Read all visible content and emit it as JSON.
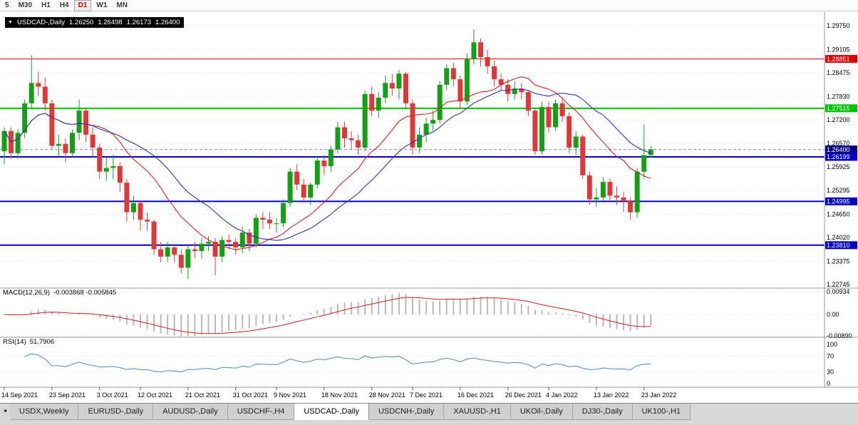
{
  "toolbar": {
    "timeframes": [
      {
        "label": "5",
        "active": false
      },
      {
        "label": "M30",
        "active": false
      },
      {
        "label": "H1",
        "active": false
      },
      {
        "label": "H4",
        "active": false
      },
      {
        "label": "D1",
        "active": true
      },
      {
        "label": "W1",
        "active": false
      },
      {
        "label": "MN",
        "active": false
      }
    ]
  },
  "chart_data": {
    "type": "candlestick",
    "title": {
      "icon_expand": "▼",
      "symbol": "USDCAD-,Daily",
      "open": "1.26250",
      "high": "1.26498",
      "low": "1.26173",
      "close": "1.26400"
    },
    "colors": {
      "bull": "#14a014",
      "bear": "#e03838",
      "grid": "#d9d9d9"
    },
    "price_axis": {
      "max": "1.29750",
      "min": "1.22745",
      "ticks": [
        "1.29750",
        "1.29105",
        "1.28475",
        "1.27830",
        "1.27200",
        "1.26570",
        "1.25925",
        "1.25295",
        "1.24650",
        "1.24020",
        "1.23375",
        "1.22745"
      ]
    },
    "levels": [
      {
        "price": "1.28851",
        "color": "#e00000",
        "line_width": 1
      },
      {
        "price": "1.27515",
        "color": "#00c400",
        "line_width": 2
      },
      {
        "price": "1.26199",
        "color": "#0000c8",
        "line_width": 2
      },
      {
        "price": "1.24995",
        "color": "#0000c8",
        "line_width": 2
      },
      {
        "price": "1.23810",
        "color": "#0000c8",
        "line_width": 2
      }
    ],
    "current_price": {
      "price": "1.26400",
      "tag_color": "#00008b",
      "line_color": "#8888c8"
    },
    "moving_averages": [
      {
        "type": "sma",
        "period": 13,
        "color": "#d42020"
      },
      {
        "type": "sma",
        "period": 21,
        "color": "#3333aa"
      }
    ],
    "x_labels": [
      {
        "t": "14 Sep 2021",
        "i": 0
      },
      {
        "t": "23 Sep 2021",
        "i": 7
      },
      {
        "t": "3 Oct 2021",
        "i": 14
      },
      {
        "t": "12 Oct 2021",
        "i": 20
      },
      {
        "t": "21 Oct 2021",
        "i": 27
      },
      {
        "t": "31 Oct 2021",
        "i": 34
      },
      {
        "t": "9 Nov 2021",
        "i": 40
      },
      {
        "t": "18 Nov 2021",
        "i": 47
      },
      {
        "t": "28 Nov 2021",
        "i": 54
      },
      {
        "t": "7 Dec 2021",
        "i": 60
      },
      {
        "t": "16 Dec 2021",
        "i": 67
      },
      {
        "t": "26 Dec 2021",
        "i": 74
      },
      {
        "t": "4 Jan 2022",
        "i": 80
      },
      {
        "t": "13 Jan 2022",
        "i": 87
      },
      {
        "t": "23 Jan 2022",
        "i": 94
      }
    ],
    "indicators": {
      "macd": {
        "name": "MACD(12,26,9)",
        "values_text": "-0.003868 -0.005845",
        "fast": 12,
        "slow": 26,
        "signal_period": 9,
        "scale_max": "0.00934",
        "scale_min": "-0.00890",
        "axis": [
          "0.00934",
          "0.00",
          "-0.00890"
        ],
        "bar_color": "#b8b8b8",
        "signal_color": "#cc2020"
      },
      "rsi": {
        "name": "RSI(14)",
        "value_text": "51.7906",
        "period": 14,
        "axis": [
          "100",
          "70",
          "30",
          "0"
        ],
        "line_color": "#4f86c8"
      }
    },
    "candles": [
      [
        1.2635,
        1.27,
        1.26,
        1.269
      ],
      [
        1.269,
        1.27,
        1.2615,
        1.263
      ],
      [
        1.263,
        1.2695,
        1.2615,
        1.2685
      ],
      [
        1.2685,
        1.2775,
        1.267,
        1.2765
      ],
      [
        1.2765,
        1.2895,
        1.275,
        1.282
      ],
      [
        1.282,
        1.285,
        1.2785,
        1.281
      ],
      [
        1.281,
        1.2835,
        1.2745,
        1.2765
      ],
      [
        1.2765,
        1.2775,
        1.264,
        1.265
      ],
      [
        1.265,
        1.268,
        1.262,
        1.2655
      ],
      [
        1.2655,
        1.267,
        1.2605,
        1.263
      ],
      [
        1.263,
        1.2695,
        1.262,
        1.2685
      ],
      [
        1.2685,
        1.2775,
        1.2665,
        1.2745
      ],
      [
        1.2745,
        1.275,
        1.266,
        1.268
      ],
      [
        1.268,
        1.27,
        1.262,
        1.2645
      ],
      [
        1.2645,
        1.2655,
        1.256,
        1.258
      ],
      [
        1.258,
        1.262,
        1.2555,
        1.259
      ],
      [
        1.259,
        1.2625,
        1.256,
        1.2595
      ],
      [
        1.2595,
        1.2605,
        1.2525,
        1.255
      ],
      [
        1.255,
        1.256,
        1.2445,
        1.247
      ],
      [
        1.247,
        1.2515,
        1.245,
        1.2495
      ],
      [
        1.2495,
        1.25,
        1.242,
        1.245
      ],
      [
        1.245,
        1.247,
        1.242,
        1.2445
      ],
      [
        1.2445,
        1.245,
        1.2355,
        1.237
      ],
      [
        1.237,
        1.239,
        1.2335,
        1.235
      ],
      [
        1.235,
        1.239,
        1.2335,
        1.2375
      ],
      [
        1.2375,
        1.2385,
        1.2335,
        1.2355
      ],
      [
        1.2355,
        1.237,
        1.2305,
        1.232
      ],
      [
        1.232,
        1.238,
        1.229,
        1.237
      ],
      [
        1.237,
        1.239,
        1.2345,
        1.2365
      ],
      [
        1.2365,
        1.24,
        1.2345,
        1.2385
      ],
      [
        1.2385,
        1.2405,
        1.2365,
        1.239
      ],
      [
        1.239,
        1.24,
        1.23,
        1.235
      ],
      [
        1.235,
        1.2405,
        1.2335,
        1.2395
      ],
      [
        1.2395,
        1.241,
        1.237,
        1.239
      ],
      [
        1.239,
        1.24,
        1.2355,
        1.2375
      ],
      [
        1.2375,
        1.243,
        1.236,
        1.2415
      ],
      [
        1.2415,
        1.2425,
        1.2365,
        1.2385
      ],
      [
        1.2385,
        1.2465,
        1.2375,
        1.2455
      ],
      [
        1.2455,
        1.247,
        1.2425,
        1.245
      ],
      [
        1.245,
        1.247,
        1.2425,
        1.244
      ],
      [
        1.244,
        1.2455,
        1.2415,
        1.244
      ],
      [
        1.244,
        1.2505,
        1.243,
        1.2495
      ],
      [
        1.2495,
        1.259,
        1.2485,
        1.258
      ],
      [
        1.258,
        1.26,
        1.253,
        1.2545
      ],
      [
        1.2545,
        1.256,
        1.2495,
        1.251
      ],
      [
        1.251,
        1.255,
        1.249,
        1.2545
      ],
      [
        1.2545,
        1.262,
        1.2535,
        1.261
      ],
      [
        1.261,
        1.2625,
        1.257,
        1.2595
      ],
      [
        1.2595,
        1.265,
        1.258,
        1.264
      ],
      [
        1.264,
        1.2715,
        1.263,
        1.27
      ],
      [
        1.27,
        1.2715,
        1.2645,
        1.267
      ],
      [
        1.267,
        1.269,
        1.264,
        1.2665
      ],
      [
        1.2665,
        1.268,
        1.2625,
        1.2645
      ],
      [
        1.2645,
        1.28,
        1.2635,
        1.279
      ],
      [
        1.279,
        1.281,
        1.273,
        1.2745
      ],
      [
        1.2745,
        1.2795,
        1.2725,
        1.278
      ],
      [
        1.278,
        1.284,
        1.2765,
        1.282
      ],
      [
        1.282,
        1.2845,
        1.2785,
        1.2805
      ],
      [
        1.2805,
        1.2855,
        1.2775,
        1.2845
      ],
      [
        1.2845,
        1.285,
        1.275,
        1.2765
      ],
      [
        1.2765,
        1.2775,
        1.2625,
        1.2645
      ],
      [
        1.2645,
        1.27,
        1.263,
        1.268
      ],
      [
        1.268,
        1.2725,
        1.266,
        1.271
      ],
      [
        1.271,
        1.2745,
        1.269,
        1.272
      ],
      [
        1.272,
        1.2825,
        1.271,
        1.2815
      ],
      [
        1.2815,
        1.287,
        1.28,
        1.286
      ],
      [
        1.286,
        1.2875,
        1.281,
        1.283
      ],
      [
        1.283,
        1.284,
        1.275,
        1.277
      ],
      [
        1.277,
        1.29,
        1.276,
        1.2885
      ],
      [
        1.2885,
        1.2965,
        1.287,
        1.293
      ],
      [
        1.293,
        1.294,
        1.2865,
        1.289
      ],
      [
        1.289,
        1.291,
        1.2845,
        1.2865
      ],
      [
        1.2865,
        1.288,
        1.281,
        1.283
      ],
      [
        1.283,
        1.2845,
        1.28,
        1.2815
      ],
      [
        1.2815,
        1.283,
        1.277,
        1.279
      ],
      [
        1.279,
        1.2825,
        1.2775,
        1.2805
      ],
      [
        1.2805,
        1.282,
        1.2775,
        1.2795
      ],
      [
        1.2795,
        1.28,
        1.273,
        1.2745
      ],
      [
        1.2745,
        1.275,
        1.2625,
        1.2635
      ],
      [
        1.2635,
        1.277,
        1.2625,
        1.2755
      ],
      [
        1.2755,
        1.277,
        1.2685,
        1.27
      ],
      [
        1.27,
        1.2775,
        1.269,
        1.2765
      ],
      [
        1.2765,
        1.278,
        1.2715,
        1.273
      ],
      [
        1.273,
        1.274,
        1.263,
        1.2645
      ],
      [
        1.2645,
        1.269,
        1.2625,
        1.2675
      ],
      [
        1.2675,
        1.268,
        1.256,
        1.257
      ],
      [
        1.257,
        1.258,
        1.249,
        1.2505
      ],
      [
        1.2505,
        1.2535,
        1.2485,
        1.251
      ],
      [
        1.251,
        1.2565,
        1.25,
        1.2552
      ],
      [
        1.2552,
        1.256,
        1.25,
        1.2515
      ],
      [
        1.2515,
        1.254,
        1.249,
        1.251
      ],
      [
        1.251,
        1.2525,
        1.247,
        1.25
      ],
      [
        1.25,
        1.251,
        1.245,
        1.247
      ],
      [
        1.247,
        1.259,
        1.2455,
        1.258
      ],
      [
        1.258,
        1.2707,
        1.256,
        1.2625
      ],
      [
        1.2625,
        1.26498,
        1.26173,
        1.264
      ]
    ]
  },
  "tabs": {
    "scroll_left": "◄",
    "items": [
      {
        "label": "USDX,Weekly",
        "active": false
      },
      {
        "label": "EURUSD-,Daily",
        "active": false
      },
      {
        "label": "AUDUSD-,Daily",
        "active": false
      },
      {
        "label": "USDCHF-,H4",
        "active": false
      },
      {
        "label": "USDCAD-,Daily",
        "active": true
      },
      {
        "label": "USDCNH-,Daily",
        "active": false
      },
      {
        "label": "XAUUSD-,H1",
        "active": false
      },
      {
        "label": "UKOil-,Daily",
        "active": false
      },
      {
        "label": "DJ30-,Daily",
        "active": false
      },
      {
        "label": "UK100-,H1",
        "active": false
      }
    ]
  }
}
